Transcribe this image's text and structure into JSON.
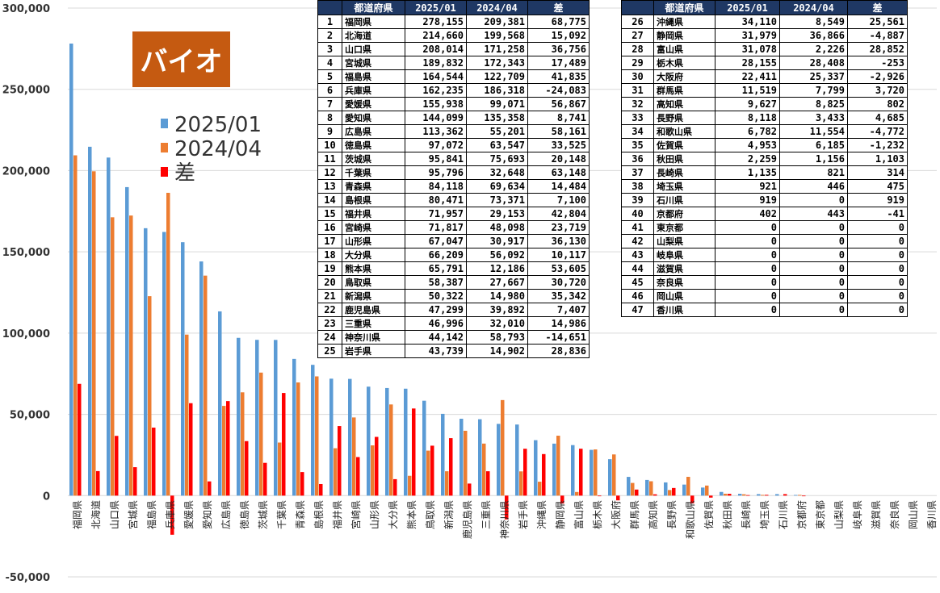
{
  "title_badge": "バイオ",
  "colors": {
    "s2025": "#5b9bd5",
    "s2024": "#ed7d31",
    "diff": "#ff0000",
    "header_bg": "#1f3864",
    "badge": "#c55a11"
  },
  "table": {
    "headers": [
      "",
      "都道府県",
      "2025/01",
      "2024/04",
      "差"
    ],
    "left_rows": [
      {
        "rank": "1",
        "pref": "福岡県",
        "v2025": "278,155",
        "v2024": "209,381",
        "diff": "68,775"
      },
      {
        "rank": "2",
        "pref": "北海道",
        "v2025": "214,660",
        "v2024": "199,568",
        "diff": "15,092"
      },
      {
        "rank": "3",
        "pref": "山口県",
        "v2025": "208,014",
        "v2024": "171,258",
        "diff": "36,756"
      },
      {
        "rank": "4",
        "pref": "宮城県",
        "v2025": "189,832",
        "v2024": "172,343",
        "diff": "17,489"
      },
      {
        "rank": "5",
        "pref": "福島県",
        "v2025": "164,544",
        "v2024": "122,709",
        "diff": "41,835"
      },
      {
        "rank": "6",
        "pref": "兵庫県",
        "v2025": "162,235",
        "v2024": "186,318",
        "diff": "-24,083"
      },
      {
        "rank": "7",
        "pref": "愛媛県",
        "v2025": "155,938",
        "v2024": "99,071",
        "diff": "56,867"
      },
      {
        "rank": "8",
        "pref": "愛知県",
        "v2025": "144,099",
        "v2024": "135,358",
        "diff": "8,741"
      },
      {
        "rank": "9",
        "pref": "広島県",
        "v2025": "113,362",
        "v2024": "55,201",
        "diff": "58,161"
      },
      {
        "rank": "10",
        "pref": "徳島県",
        "v2025": "97,072",
        "v2024": "63,547",
        "diff": "33,525"
      },
      {
        "rank": "11",
        "pref": "茨城県",
        "v2025": "95,841",
        "v2024": "75,693",
        "diff": "20,148"
      },
      {
        "rank": "12",
        "pref": "千葉県",
        "v2025": "95,796",
        "v2024": "32,648",
        "diff": "63,148"
      },
      {
        "rank": "13",
        "pref": "青森県",
        "v2025": "84,118",
        "v2024": "69,634",
        "diff": "14,484"
      },
      {
        "rank": "14",
        "pref": "島根県",
        "v2025": "80,471",
        "v2024": "73,371",
        "diff": "7,100"
      },
      {
        "rank": "15",
        "pref": "福井県",
        "v2025": "71,957",
        "v2024": "29,153",
        "diff": "42,804"
      },
      {
        "rank": "16",
        "pref": "宮崎県",
        "v2025": "71,817",
        "v2024": "48,098",
        "diff": "23,719"
      },
      {
        "rank": "17",
        "pref": "山形県",
        "v2025": "67,047",
        "v2024": "30,917",
        "diff": "36,130"
      },
      {
        "rank": "18",
        "pref": "大分県",
        "v2025": "66,209",
        "v2024": "56,092",
        "diff": "10,117"
      },
      {
        "rank": "19",
        "pref": "熊本県",
        "v2025": "65,791",
        "v2024": "12,186",
        "diff": "53,605"
      },
      {
        "rank": "20",
        "pref": "鳥取県",
        "v2025": "58,387",
        "v2024": "27,667",
        "diff": "30,720"
      },
      {
        "rank": "21",
        "pref": "新潟県",
        "v2025": "50,322",
        "v2024": "14,980",
        "diff": "35,342"
      },
      {
        "rank": "22",
        "pref": "鹿児島県",
        "v2025": "47,299",
        "v2024": "39,892",
        "diff": "7,407"
      },
      {
        "rank": "23",
        "pref": "三重県",
        "v2025": "46,996",
        "v2024": "32,010",
        "diff": "14,986"
      },
      {
        "rank": "24",
        "pref": "神奈川県",
        "v2025": "44,142",
        "v2024": "58,793",
        "diff": "-14,651"
      },
      {
        "rank": "25",
        "pref": "岩手県",
        "v2025": "43,739",
        "v2024": "14,902",
        "diff": "28,836"
      }
    ],
    "right_rows": [
      {
        "rank": "26",
        "pref": "沖縄県",
        "v2025": "34,110",
        "v2024": "8,549",
        "diff": "25,561"
      },
      {
        "rank": "27",
        "pref": "静岡県",
        "v2025": "31,979",
        "v2024": "36,866",
        "diff": "-4,887"
      },
      {
        "rank": "28",
        "pref": "富山県",
        "v2025": "31,078",
        "v2024": "2,226",
        "diff": "28,852"
      },
      {
        "rank": "29",
        "pref": "栃木県",
        "v2025": "28,155",
        "v2024": "28,408",
        "diff": "-253"
      },
      {
        "rank": "30",
        "pref": "大阪府",
        "v2025": "22,411",
        "v2024": "25,337",
        "diff": "-2,926"
      },
      {
        "rank": "31",
        "pref": "群馬県",
        "v2025": "11,519",
        "v2024": "7,799",
        "diff": "3,720"
      },
      {
        "rank": "32",
        "pref": "高知県",
        "v2025": "9,627",
        "v2024": "8,825",
        "diff": "802"
      },
      {
        "rank": "33",
        "pref": "長野県",
        "v2025": "8,118",
        "v2024": "3,433",
        "diff": "4,685"
      },
      {
        "rank": "34",
        "pref": "和歌山県",
        "v2025": "6,782",
        "v2024": "11,554",
        "diff": "-4,772"
      },
      {
        "rank": "35",
        "pref": "佐賀県",
        "v2025": "4,953",
        "v2024": "6,185",
        "diff": "-1,232"
      },
      {
        "rank": "36",
        "pref": "秋田県",
        "v2025": "2,259",
        "v2024": "1,156",
        "diff": "1,103"
      },
      {
        "rank": "37",
        "pref": "長崎県",
        "v2025": "1,135",
        "v2024": "821",
        "diff": "314"
      },
      {
        "rank": "38",
        "pref": "埼玉県",
        "v2025": "921",
        "v2024": "446",
        "diff": "475"
      },
      {
        "rank": "39",
        "pref": "石川県",
        "v2025": "919",
        "v2024": "0",
        "diff": "919"
      },
      {
        "rank": "40",
        "pref": "京都府",
        "v2025": "402",
        "v2024": "443",
        "diff": "-41"
      },
      {
        "rank": "41",
        "pref": "東京都",
        "v2025": "0",
        "v2024": "0",
        "diff": "0"
      },
      {
        "rank": "42",
        "pref": "山梨県",
        "v2025": "0",
        "v2024": "0",
        "diff": "0"
      },
      {
        "rank": "43",
        "pref": "岐阜県",
        "v2025": "0",
        "v2024": "0",
        "diff": "0"
      },
      {
        "rank": "44",
        "pref": "滋賀県",
        "v2025": "0",
        "v2024": "0",
        "diff": "0"
      },
      {
        "rank": "45",
        "pref": "奈良県",
        "v2025": "0",
        "v2024": "0",
        "diff": "0"
      },
      {
        "rank": "46",
        "pref": "岡山県",
        "v2025": "0",
        "v2024": "0",
        "diff": "0"
      },
      {
        "rank": "47",
        "pref": "香川県",
        "v2025": "0",
        "v2024": "0",
        "diff": "0"
      }
    ]
  },
  "chart_data": {
    "type": "bar",
    "title": "バイオ",
    "ylim": [
      -50000,
      300000
    ],
    "yticks": [
      -50000,
      0,
      50000,
      100000,
      150000,
      200000,
      250000,
      300000
    ],
    "ytick_labels": [
      "-50,000",
      "0",
      "50,000",
      "100,000",
      "150,000",
      "200,000",
      "250,000",
      "300,000"
    ],
    "grid": true,
    "legend_position": "top-left",
    "categories": [
      "福岡県",
      "北海道",
      "山口県",
      "宮城県",
      "福島県",
      "兵庫県",
      "愛媛県",
      "愛知県",
      "広島県",
      "徳島県",
      "茨城県",
      "千葉県",
      "青森県",
      "島根県",
      "福井県",
      "宮崎県",
      "山形県",
      "大分県",
      "熊本県",
      "鳥取県",
      "新潟県",
      "鹿児島県",
      "三重県",
      "神奈川県",
      "岩手県",
      "沖縄県",
      "静岡県",
      "富山県",
      "栃木県",
      "大阪府",
      "群馬県",
      "高知県",
      "長野県",
      "和歌山県",
      "佐賀県",
      "秋田県",
      "長崎県",
      "埼玉県",
      "石川県",
      "京都府",
      "東京都",
      "山梨県",
      "岐阜県",
      "滋賀県",
      "奈良県",
      "岡山県",
      "香川県"
    ],
    "series": [
      {
        "name": "2025/01",
        "values": [
          278155,
          214660,
          208014,
          189832,
          164544,
          162235,
          155938,
          144099,
          113362,
          97072,
          95841,
          95796,
          84118,
          80471,
          71957,
          71817,
          67047,
          66209,
          65791,
          58387,
          50322,
          47299,
          46996,
          44142,
          43739,
          34110,
          31979,
          31078,
          28155,
          22411,
          11519,
          9627,
          8118,
          6782,
          4953,
          2259,
          1135,
          921,
          919,
          402,
          0,
          0,
          0,
          0,
          0,
          0,
          0
        ]
      },
      {
        "name": "2024/04",
        "values": [
          209381,
          199568,
          171258,
          172343,
          122709,
          186318,
          99071,
          135358,
          55201,
          63547,
          75693,
          32648,
          69634,
          73371,
          29153,
          48098,
          30917,
          56092,
          12186,
          27667,
          14980,
          39892,
          32010,
          58793,
          14902,
          8549,
          36866,
          2226,
          28408,
          25337,
          7799,
          8825,
          3433,
          11554,
          6185,
          1156,
          821,
          446,
          0,
          443,
          0,
          0,
          0,
          0,
          0,
          0,
          0
        ]
      },
      {
        "name": "差",
        "values": [
          68775,
          15092,
          36756,
          17489,
          41835,
          -24083,
          56867,
          8741,
          58161,
          33525,
          20148,
          63148,
          14484,
          7100,
          42804,
          23719,
          36130,
          10117,
          53605,
          30720,
          35342,
          7407,
          14986,
          -14651,
          28836,
          25561,
          -4887,
          28852,
          -253,
          -2926,
          3720,
          802,
          4685,
          -4772,
          -1232,
          1103,
          314,
          475,
          919,
          -41,
          0,
          0,
          0,
          0,
          0,
          0,
          0
        ]
      }
    ]
  }
}
